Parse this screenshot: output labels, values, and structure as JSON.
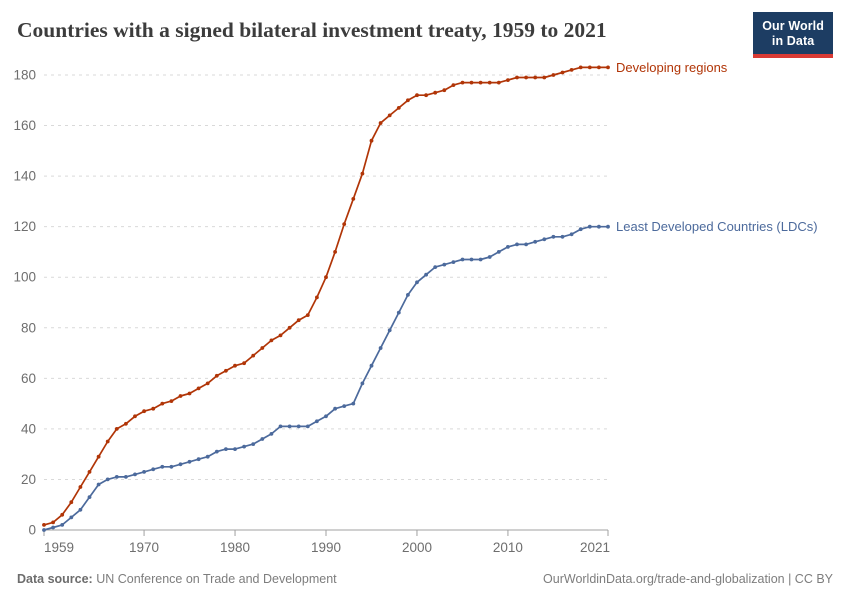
{
  "header": {
    "title": "Countries with a signed bilateral investment treaty, 1959 to 2021",
    "logo": {
      "line1": "Our World",
      "line2": "in Data"
    }
  },
  "footer": {
    "source_label": "Data source:",
    "source_text": " UN Conference on Trade and Development",
    "credit": "OurWorldinData.org/trade-and-globalization | CC BY"
  },
  "colors": {
    "developing_regions": "#b13507",
    "ldcs": "#4c6a9c",
    "axis_line": "#a0a0a0",
    "gridline": "#d9d9d9",
    "tick_label": "#6e6e6e",
    "logo_bg": "#1d3d63",
    "logo_accent": "#d93a34"
  },
  "chart_data": {
    "type": "line",
    "title": "Countries with a signed bilateral investment treaty, 1959 to 2021",
    "xlabel": "",
    "ylabel": "",
    "xlim": [
      1959,
      2021
    ],
    "ylim": [
      0,
      180
    ],
    "xticks": [
      1959,
      1970,
      1980,
      1990,
      2000,
      2010,
      2021
    ],
    "yticks": [
      0,
      20,
      40,
      60,
      80,
      100,
      120,
      140,
      160,
      180
    ],
    "grid": "horizontal-dashed",
    "legend_position": "end-of-line-labels",
    "x": [
      1959,
      1960,
      1961,
      1962,
      1963,
      1964,
      1965,
      1966,
      1967,
      1968,
      1969,
      1970,
      1971,
      1972,
      1973,
      1974,
      1975,
      1976,
      1977,
      1978,
      1979,
      1980,
      1981,
      1982,
      1983,
      1984,
      1985,
      1986,
      1987,
      1988,
      1989,
      1990,
      1991,
      1992,
      1993,
      1994,
      1995,
      1996,
      1997,
      1998,
      1999,
      2000,
      2001,
      2002,
      2003,
      2004,
      2005,
      2006,
      2007,
      2008,
      2009,
      2010,
      2011,
      2012,
      2013,
      2014,
      2015,
      2016,
      2017,
      2018,
      2019,
      2020,
      2021
    ],
    "series": [
      {
        "name": "Developing regions",
        "color": "#b13507",
        "values": [
          2,
          3,
          6,
          11,
          17,
          23,
          29,
          35,
          40,
          42,
          45,
          47,
          48,
          50,
          51,
          53,
          54,
          56,
          58,
          61,
          63,
          65,
          66,
          69,
          72,
          75,
          77,
          80,
          83,
          85,
          92,
          100,
          110,
          121,
          131,
          141,
          154,
          161,
          164,
          167,
          170,
          172,
          172,
          173,
          174,
          176,
          177,
          177,
          177,
          177,
          177,
          178,
          179,
          179,
          179,
          179,
          180,
          181,
          182,
          183,
          183,
          183,
          183
        ]
      },
      {
        "name": "Least Developed Countries (LDCs)",
        "color": "#4c6a9c",
        "values": [
          0,
          1,
          2,
          5,
          8,
          13,
          18,
          20,
          21,
          21,
          22,
          23,
          24,
          25,
          25,
          26,
          27,
          28,
          29,
          31,
          32,
          32,
          33,
          34,
          36,
          38,
          41,
          41,
          41,
          41,
          43,
          45,
          48,
          49,
          50,
          58,
          65,
          72,
          79,
          86,
          93,
          98,
          101,
          104,
          105,
          106,
          107,
          107,
          107,
          108,
          110,
          112,
          113,
          113,
          114,
          115,
          116,
          116,
          117,
          119,
          120,
          120,
          120
        ]
      }
    ]
  }
}
